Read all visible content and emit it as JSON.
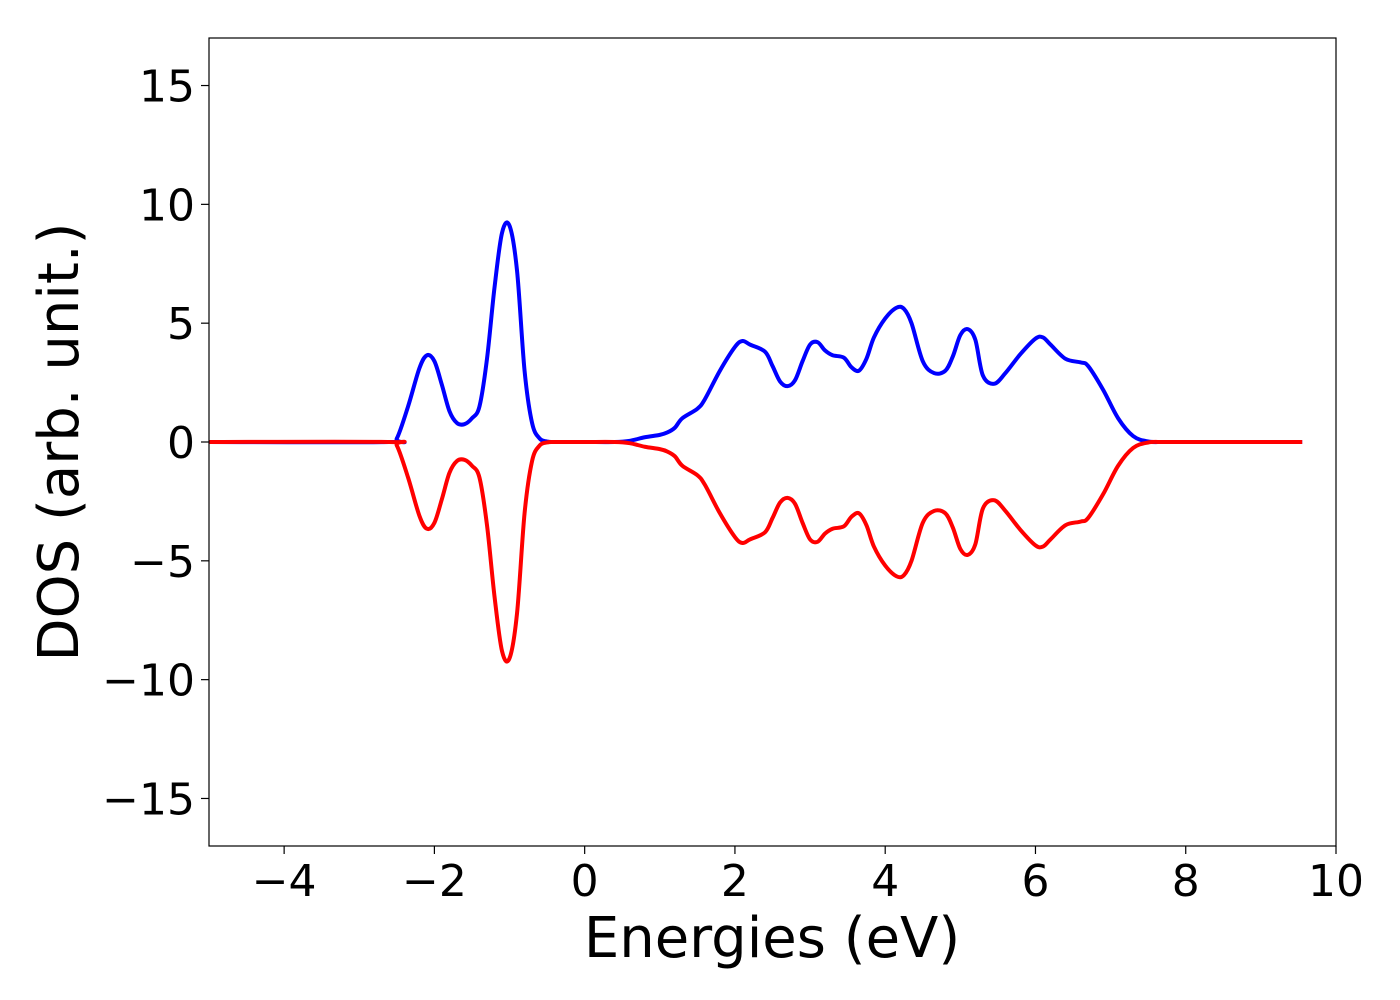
{
  "chart_data": {
    "type": "line",
    "title": "",
    "xlabel": "Energies (eV)",
    "ylabel": "DOS (arb. unit.)",
    "xlim": [
      -5,
      10
    ],
    "ylim": [
      -17,
      17
    ],
    "xticks": [
      -4,
      -2,
      0,
      2,
      4,
      6,
      8,
      10
    ],
    "xtick_labels": [
      "−4",
      "−2",
      "0",
      "2",
      "4",
      "6",
      "8",
      "10"
    ],
    "yticks": [
      15,
      10,
      5,
      0,
      -5,
      -10,
      -15
    ],
    "ytick_labels": [
      "15",
      "10",
      "5",
      "0",
      "−5",
      "−10",
      "−15"
    ],
    "grid": false,
    "legend": "none",
    "colors": {
      "up": "#0000ff",
      "down": "#ff0000"
    },
    "series": [
      {
        "color": "#0000ff",
        "x": [
          -5.0,
          -2.6,
          -2.5,
          -2.35,
          -2.2,
          -2.1,
          -2.0,
          -1.9,
          -1.8,
          -1.7,
          -1.6,
          -1.5,
          -1.4,
          -1.3,
          -1.2,
          -1.1,
          -1.0,
          -0.9,
          -0.8,
          -0.7,
          -0.6,
          -0.5,
          -0.4,
          0.0,
          0.4,
          0.6,
          0.8,
          1.0,
          1.1,
          1.2,
          1.3,
          1.5,
          1.6,
          1.8,
          2.0,
          2.1,
          2.2,
          2.4,
          2.5,
          2.6,
          2.7,
          2.8,
          2.9,
          3.0,
          3.1,
          3.2,
          3.3,
          3.45,
          3.55,
          3.65,
          3.75,
          3.85,
          4.0,
          4.15,
          4.25,
          4.35,
          4.5,
          4.65,
          4.8,
          4.9,
          5.0,
          5.1,
          5.2,
          5.3,
          5.45,
          5.6,
          5.8,
          6.0,
          6.1,
          6.2,
          6.4,
          6.6,
          6.7,
          6.9,
          7.1,
          7.3,
          7.5,
          7.7,
          8.0,
          9.55
        ],
        "y": [
          0,
          0,
          0.15,
          1.5,
          3.1,
          3.65,
          3.4,
          2.4,
          1.3,
          0.8,
          0.75,
          1.0,
          1.5,
          3.5,
          6.5,
          8.8,
          9.1,
          7.2,
          3.0,
          0.8,
          0.15,
          0.02,
          0,
          0,
          0,
          0.05,
          0.2,
          0.3,
          0.4,
          0.6,
          1.0,
          1.4,
          1.8,
          3.0,
          4.0,
          4.25,
          4.1,
          3.8,
          3.2,
          2.55,
          2.35,
          2.6,
          3.4,
          4.1,
          4.2,
          3.85,
          3.65,
          3.55,
          3.15,
          3.0,
          3.5,
          4.4,
          5.2,
          5.65,
          5.6,
          5.0,
          3.4,
          2.9,
          3.0,
          3.6,
          4.5,
          4.75,
          4.3,
          2.8,
          2.45,
          2.9,
          3.7,
          4.35,
          4.4,
          4.1,
          3.5,
          3.35,
          3.2,
          2.2,
          1.0,
          0.25,
          0.02,
          0,
          0,
          0
        ]
      },
      {
        "color": "#ff0000",
        "x": [
          -5.0,
          -2.6,
          -2.5,
          -2.35,
          -2.2,
          -2.1,
          -2.0,
          -1.9,
          -1.8,
          -1.7,
          -1.6,
          -1.5,
          -1.4,
          -1.3,
          -1.2,
          -1.1,
          -1.0,
          -0.9,
          -0.8,
          -0.7,
          -0.6,
          -0.5,
          -0.4,
          0.0,
          0.4,
          0.6,
          0.8,
          1.0,
          1.1,
          1.2,
          1.3,
          1.5,
          1.6,
          1.8,
          2.0,
          2.1,
          2.2,
          2.4,
          2.5,
          2.6,
          2.7,
          2.8,
          2.9,
          3.0,
          3.1,
          3.2,
          3.3,
          3.45,
          3.55,
          3.65,
          3.75,
          3.85,
          4.0,
          4.15,
          4.25,
          4.35,
          4.5,
          4.65,
          4.8,
          4.9,
          5.0,
          5.1,
          5.2,
          5.3,
          5.45,
          5.6,
          5.8,
          6.0,
          6.1,
          6.2,
          6.4,
          6.6,
          6.7,
          6.9,
          7.1,
          7.3,
          7.5,
          7.7,
          8.0,
          9.55
        ],
        "y": [
          0,
          0,
          -0.15,
          -1.5,
          -3.1,
          -3.65,
          -3.4,
          -2.4,
          -1.3,
          -0.8,
          -0.75,
          -1.0,
          -1.5,
          -3.5,
          -6.5,
          -8.8,
          -9.1,
          -7.2,
          -3.0,
          -0.8,
          -0.15,
          -0.02,
          0,
          0,
          0,
          -0.05,
          -0.2,
          -0.3,
          -0.4,
          -0.6,
          -1.0,
          -1.4,
          -1.8,
          -3.0,
          -4.0,
          -4.25,
          -4.1,
          -3.8,
          -3.2,
          -2.55,
          -2.35,
          -2.6,
          -3.4,
          -4.1,
          -4.2,
          -3.85,
          -3.65,
          -3.55,
          -3.15,
          -3.0,
          -3.5,
          -4.4,
          -5.2,
          -5.65,
          -5.6,
          -5.0,
          -3.4,
          -2.9,
          -3.0,
          -3.6,
          -4.5,
          -4.75,
          -4.3,
          -2.8,
          -2.45,
          -2.9,
          -3.7,
          -4.35,
          -4.4,
          -4.1,
          -3.5,
          -3.35,
          -3.2,
          -2.2,
          -1.0,
          -0.25,
          -0.02,
          0,
          0,
          0
        ]
      }
    ]
  }
}
